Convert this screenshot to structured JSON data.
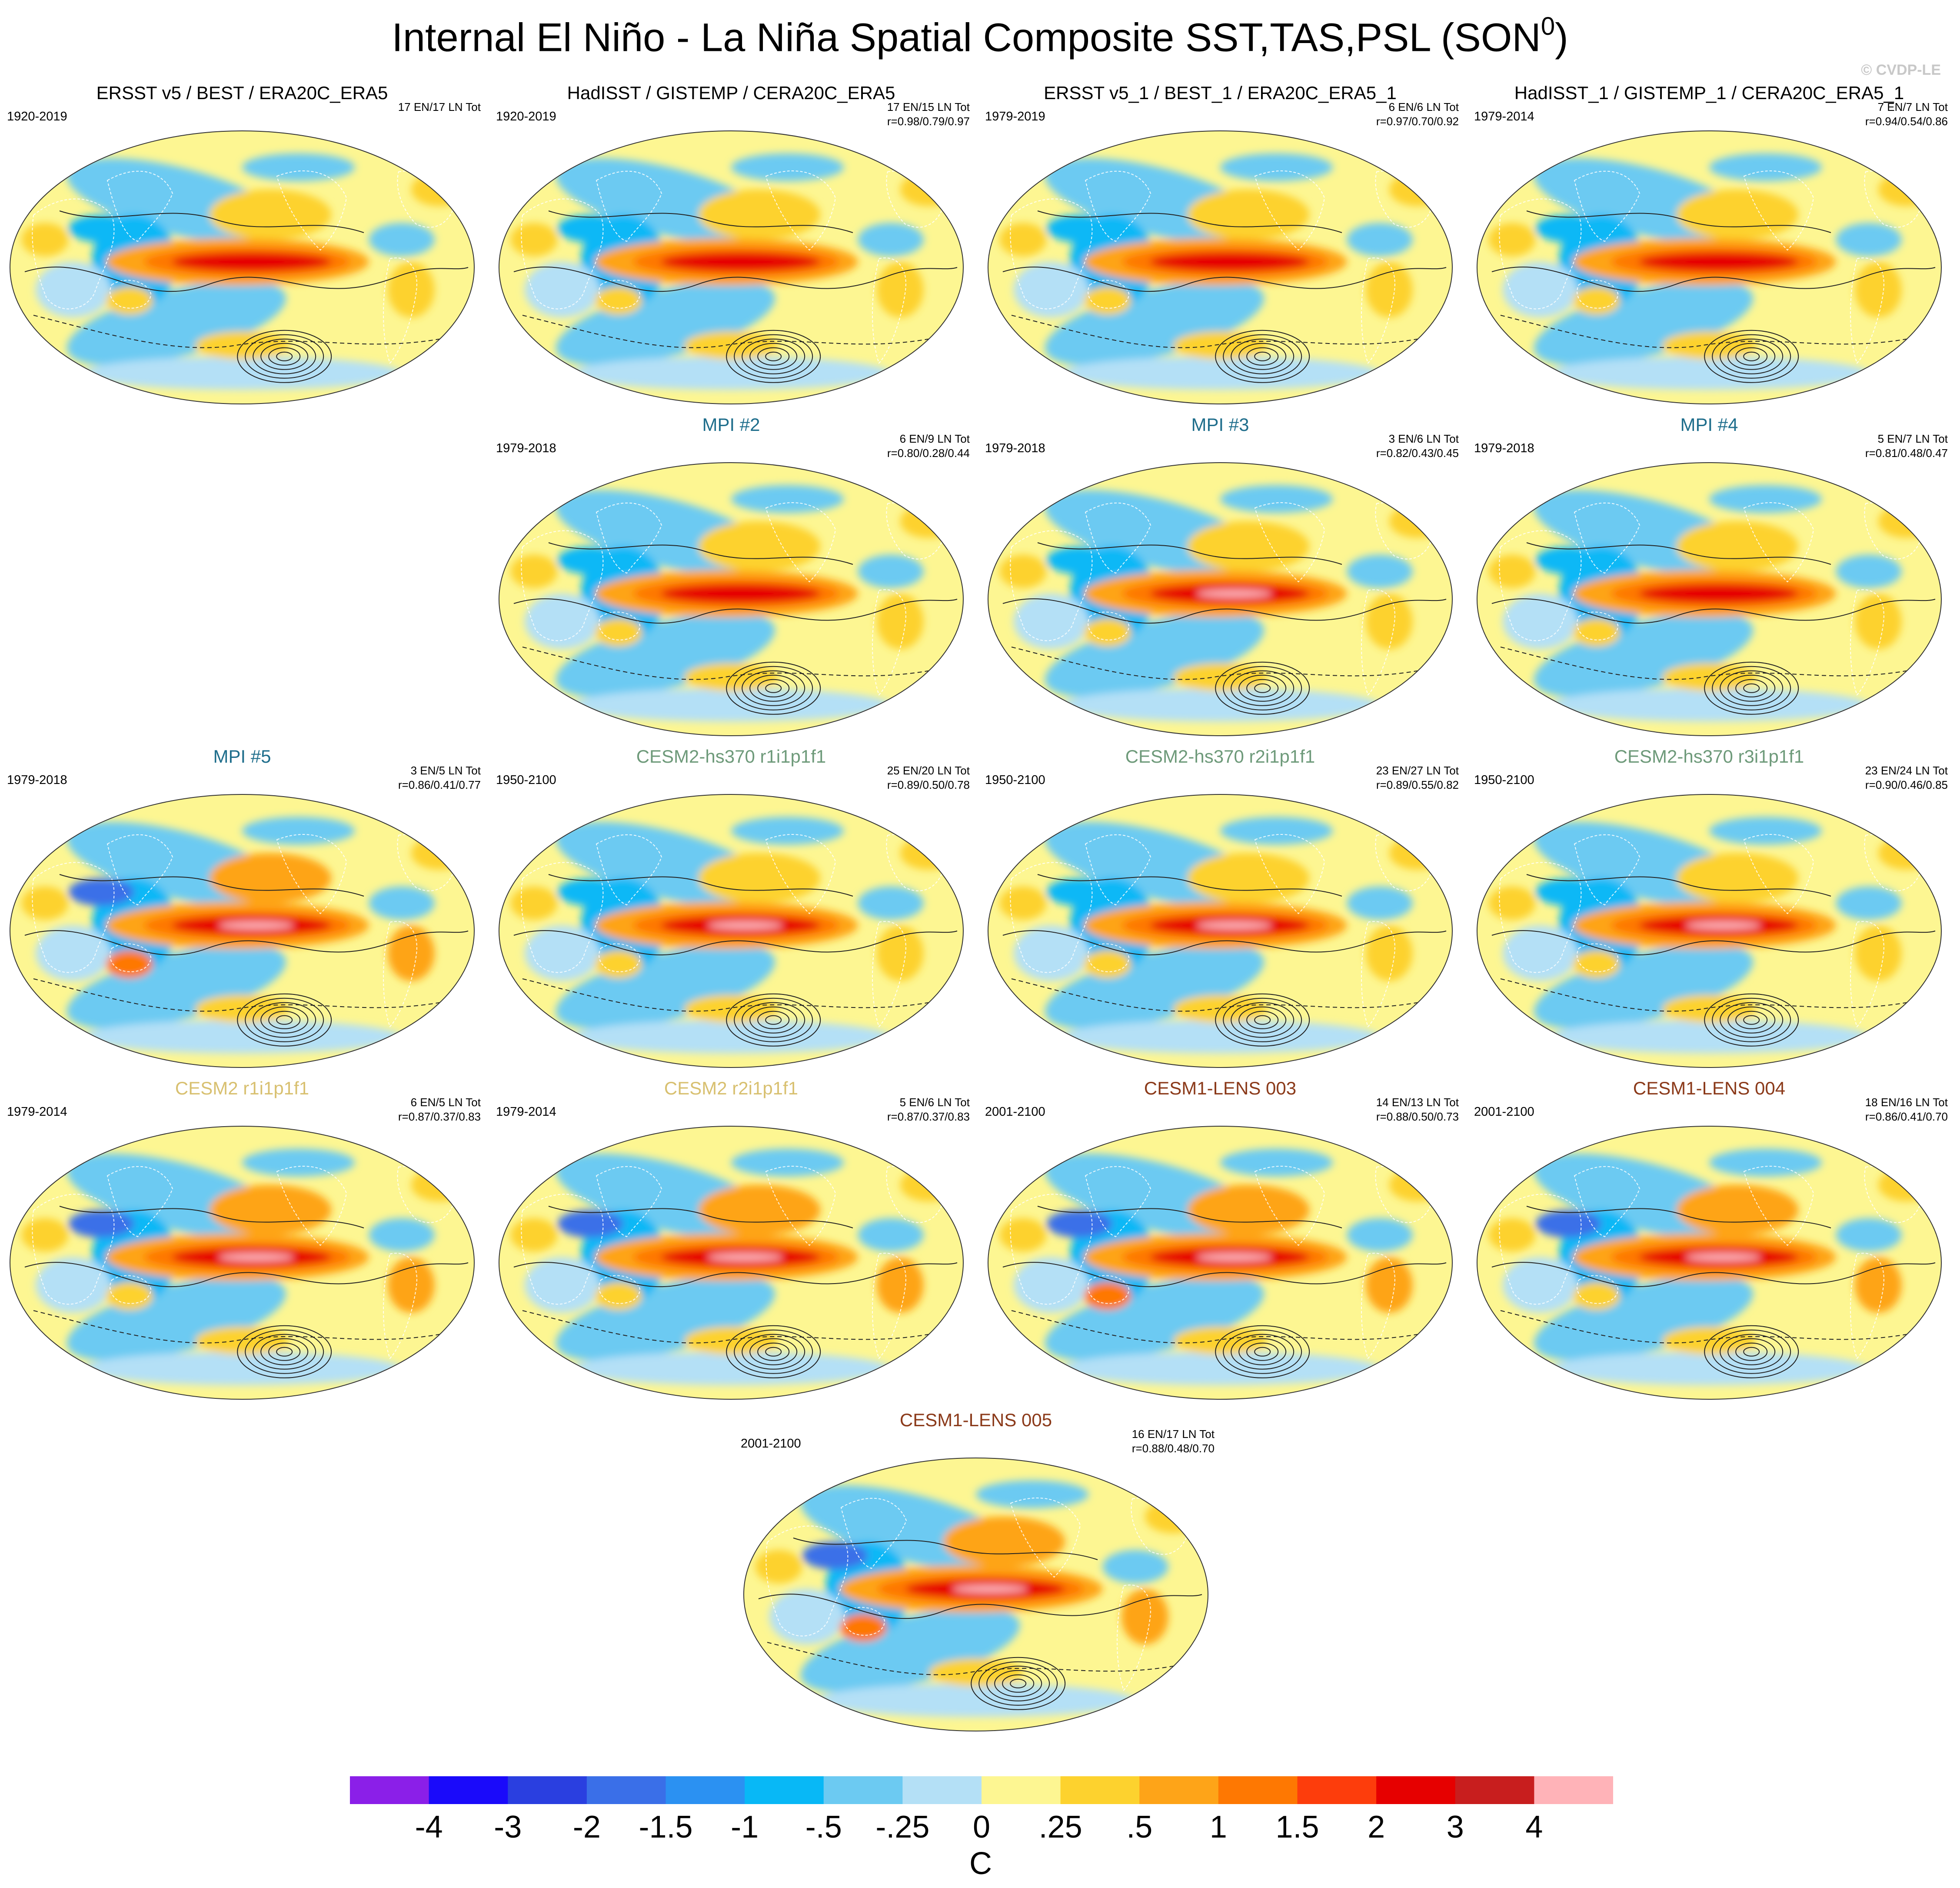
{
  "title": {
    "main": "Internal El Niño - La Niña Spatial Composite SST,TAS,PSL (SON",
    "superscript": "0",
    "close": ")"
  },
  "watermark": "© CVDP-LE",
  "colorbar": {
    "colors": [
      "#8b1fe8",
      "#1a0afa",
      "#2a3fe0",
      "#3a6fe8",
      "#2b91f2",
      "#08b8f6",
      "#6ccaf2",
      "#b4e0f6",
      "#fdf692",
      "#fdd22e",
      "#fea418",
      "#fe7802",
      "#fd3d0c",
      "#e60000",
      "#c81e1e",
      "#ffb3b8"
    ],
    "labels": [
      "-4",
      "-3",
      "-2",
      "-1.5",
      "-1",
      "-.5",
      "-.25",
      "0",
      ".25",
      ".5",
      "1",
      "1.5",
      "2",
      "3",
      "4"
    ],
    "unit": "C"
  },
  "chart_data": {
    "type": "heatmap",
    "title": "Internal El Niño - La Niña Spatial Composite SST,TAS,PSL (SON0)",
    "variable": "SST/TAS shading with PSL contours",
    "units": "C",
    "contour_levels": [
      -4,
      -3,
      -2,
      -1.5,
      -1,
      -0.5,
      -0.25,
      0,
      0.25,
      0.5,
      1,
      1.5,
      2,
      3,
      4
    ],
    "panels": [
      {
        "title": "ERSST v5 / BEST / ERA20C_ERA5",
        "title_color": "#000000",
        "years": "1920-2019",
        "counts": "17 EN/17 LN Tot",
        "correlation": "",
        "intensity": 0.55
      },
      {
        "title": "HadISST / GISTEMP / CERA20C_ERA5",
        "title_color": "#000000",
        "years": "1920-2019",
        "counts": "17 EN/15 LN Tot",
        "correlation": "r=0.98/0.79/0.97",
        "intensity": 0.55
      },
      {
        "title": "ERSST v5_1 / BEST_1 / ERA20C_ERA5_1",
        "title_color": "#000000",
        "years": "1979-2019",
        "counts": "6 EN/6 LN Tot",
        "correlation": "r=0.97/0.70/0.92",
        "intensity": 0.6
      },
      {
        "title": "HadISST_1 / GISTEMP_1 / CERA20C_ERA5_1",
        "title_color": "#000000",
        "years": "1979-2014",
        "counts": "7 EN/7 LN Tot",
        "correlation": "r=0.94/0.54/0.86",
        "intensity": 0.6
      },
      {
        "title": "MPI #2",
        "title_color": "#1f6e8c",
        "years": "1979-2018",
        "counts": "6 EN/9 LN Tot",
        "correlation": "r=0.80/0.28/0.44",
        "intensity": 0.7
      },
      {
        "title": "MPI #3",
        "title_color": "#1f6e8c",
        "years": "1979-2018",
        "counts": "3 EN/6 LN Tot",
        "correlation": "r=0.82/0.43/0.45",
        "intensity": 0.8
      },
      {
        "title": "MPI #4",
        "title_color": "#1f6e8c",
        "years": "1979-2018",
        "counts": "5 EN/7 LN Tot",
        "correlation": "r=0.81/0.48/0.47",
        "intensity": 0.75
      },
      {
        "title": "MPI #5",
        "title_color": "#1f6e8c",
        "years": "1979-2018",
        "counts": "3 EN/5 LN Tot",
        "correlation": "r=0.86/0.41/0.77",
        "intensity": 1.0
      },
      {
        "title": "CESM2-hs370 r1i1p1f1",
        "title_color": "#6e9a7a",
        "years": "1950-2100",
        "counts": "25 EN/20 LN Tot",
        "correlation": "r=0.89/0.50/0.78",
        "intensity": 0.8
      },
      {
        "title": "CESM2-hs370 r2i1p1f1",
        "title_color": "#6e9a7a",
        "years": "1950-2100",
        "counts": "23 EN/27 LN Tot",
        "correlation": "r=0.89/0.55/0.82",
        "intensity": 0.8
      },
      {
        "title": "CESM2-hs370 r3i1p1f1",
        "title_color": "#6e9a7a",
        "years": "1950-2100",
        "counts": "23 EN/24 LN Tot",
        "correlation": "r=0.90/0.46/0.85",
        "intensity": 0.8
      },
      {
        "title": "CESM2 r1i1p1f1",
        "title_color": "#d8c070",
        "years": "1979-2014",
        "counts": "6 EN/5 LN Tot",
        "correlation": "r=0.87/0.37/0.83",
        "intensity": 0.85
      },
      {
        "title": "CESM2 r2i1p1f1",
        "title_color": "#d8c070",
        "years": "1979-2014",
        "counts": "5 EN/6 LN Tot",
        "correlation": "r=0.87/0.37/0.83",
        "intensity": 0.85
      },
      {
        "title": "CESM1-LENS 003",
        "title_color": "#8b3a1a",
        "years": "2001-2100",
        "counts": "14 EN/13 LN Tot",
        "correlation": "r=0.88/0.50/0.73",
        "intensity": 0.95
      },
      {
        "title": "CESM1-LENS 004",
        "title_color": "#8b3a1a",
        "years": "2001-2100",
        "counts": "18 EN/16 LN Tot",
        "correlation": "r=0.86/0.41/0.70",
        "intensity": 0.85
      },
      {
        "title": "CESM1-LENS 005",
        "title_color": "#8b3a1a",
        "years": "2001-2100",
        "counts": "16 EN/17 LN Tot",
        "correlation": "r=0.88/0.48/0.70",
        "intensity": 0.9
      }
    ]
  }
}
